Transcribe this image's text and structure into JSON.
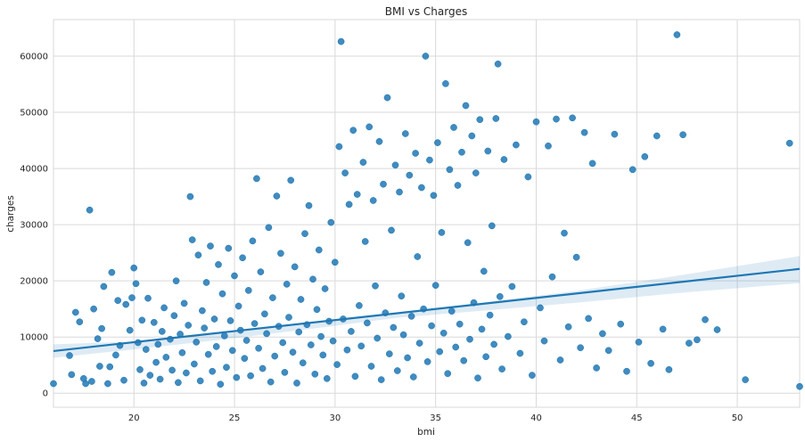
{
  "chart_data": {
    "type": "scatter",
    "title": "BMI vs Charges",
    "xlabel": "bmi",
    "ylabel": "charges",
    "xlim": [
      16,
      53.1
    ],
    "ylim": [
      -2500,
      66500
    ],
    "xticks": [
      20,
      25,
      30,
      35,
      40,
      45,
      50
    ],
    "xtick_labels": [
      "20",
      "25",
      "30",
      "35",
      "40",
      "45",
      "50"
    ],
    "yticks": [
      0,
      10000,
      20000,
      30000,
      40000,
      50000,
      60000
    ],
    "ytick_labels": [
      "0",
      "10000",
      "20000",
      "30000",
      "40000",
      "50000",
      "60000"
    ],
    "grid": true,
    "point_color": "#1f77b4",
    "line_color": "#1f77b4",
    "band_color": "#1f77b4",
    "regression": {
      "slope": 394,
      "intercept": 1200,
      "ci_band": [
        [
          16,
          6300,
          8700
        ],
        [
          20,
          7800,
          9200
        ],
        [
          25,
          9800,
          11100
        ],
        [
          30,
          12000,
          13000
        ],
        [
          33,
          13400,
          14300
        ],
        [
          37,
          14600,
          16000
        ],
        [
          42,
          16100,
          18200
        ],
        [
          47,
          17800,
          20900
        ],
        [
          53.1,
          19600,
          24400
        ]
      ]
    },
    "points": [
      [
        16.0,
        1700
      ],
      [
        16.8,
        6700
      ],
      [
        16.9,
        3300
      ],
      [
        17.1,
        14400
      ],
      [
        17.3,
        12700
      ],
      [
        17.5,
        2600
      ],
      [
        17.6,
        1700
      ],
      [
        17.8,
        32600
      ],
      [
        17.9,
        2100
      ],
      [
        18.0,
        15000
      ],
      [
        18.2,
        9700
      ],
      [
        18.3,
        4800
      ],
      [
        18.4,
        11500
      ],
      [
        18.5,
        19000
      ],
      [
        18.7,
        1700
      ],
      [
        18.8,
        4700
      ],
      [
        18.9,
        21500
      ],
      [
        19.1,
        6800
      ],
      [
        19.2,
        16500
      ],
      [
        19.3,
        8500
      ],
      [
        19.5,
        2300
      ],
      [
        19.6,
        15800
      ],
      [
        19.8,
        11200
      ],
      [
        19.9,
        17000
      ],
      [
        20.0,
        22300
      ],
      [
        20.1,
        19500
      ],
      [
        20.2,
        9000
      ],
      [
        20.3,
        4200
      ],
      [
        20.4,
        13000
      ],
      [
        20.5,
        1800
      ],
      [
        20.6,
        7800
      ],
      [
        20.7,
        16900
      ],
      [
        20.8,
        3200
      ],
      [
        21.0,
        12600
      ],
      [
        21.1,
        5500
      ],
      [
        21.2,
        8700
      ],
      [
        21.3,
        2500
      ],
      [
        21.4,
        11000
      ],
      [
        21.5,
        15200
      ],
      [
        21.6,
        6400
      ],
      [
        21.8,
        9600
      ],
      [
        21.9,
        4100
      ],
      [
        22.0,
        13800
      ],
      [
        22.1,
        20000
      ],
      [
        22.2,
        1900
      ],
      [
        22.3,
        10500
      ],
      [
        22.4,
        7200
      ],
      [
        22.5,
        16000
      ],
      [
        22.6,
        3600
      ],
      [
        22.7,
        12100
      ],
      [
        22.8,
        35000
      ],
      [
        22.9,
        27300
      ],
      [
        23.0,
        5200
      ],
      [
        23.1,
        9100
      ],
      [
        23.2,
        24600
      ],
      [
        23.3,
        2200
      ],
      [
        23.4,
        14700
      ],
      [
        23.5,
        11600
      ],
      [
        23.6,
        19700
      ],
      [
        23.7,
        6900
      ],
      [
        23.8,
        26200
      ],
      [
        23.9,
        3900
      ],
      [
        24.0,
        13200
      ],
      [
        24.1,
        8300
      ],
      [
        24.2,
        22900
      ],
      [
        24.3,
        1600
      ],
      [
        24.4,
        17700
      ],
      [
        24.5,
        10200
      ],
      [
        24.6,
        4600
      ],
      [
        24.7,
        25800
      ],
      [
        24.8,
        12900
      ],
      [
        24.9,
        7600
      ],
      [
        25.0,
        20900
      ],
      [
        25.1,
        2800
      ],
      [
        25.2,
        15500
      ],
      [
        25.3,
        11200
      ],
      [
        25.4,
        24100
      ],
      [
        25.5,
        6200
      ],
      [
        25.6,
        9400
      ],
      [
        25.7,
        18300
      ],
      [
        25.8,
        3100
      ],
      [
        25.9,
        27100
      ],
      [
        26.0,
        12400
      ],
      [
        26.1,
        38200
      ],
      [
        26.2,
        8000
      ],
      [
        26.3,
        21600
      ],
      [
        26.4,
        4400
      ],
      [
        26.5,
        14100
      ],
      [
        26.6,
        10600
      ],
      [
        26.7,
        29500
      ],
      [
        26.8,
        2000
      ],
      [
        26.9,
        17000
      ],
      [
        27.0,
        6600
      ],
      [
        27.1,
        35100
      ],
      [
        27.2,
        11900
      ],
      [
        27.3,
        24900
      ],
      [
        27.4,
        9000
      ],
      [
        27.5,
        3700
      ],
      [
        27.6,
        19400
      ],
      [
        27.7,
        13500
      ],
      [
        27.8,
        37900
      ],
      [
        27.9,
        7300
      ],
      [
        28.0,
        22500
      ],
      [
        28.1,
        1800
      ],
      [
        28.2,
        10900
      ],
      [
        28.3,
        16700
      ],
      [
        28.4,
        5400
      ],
      [
        28.5,
        28400
      ],
      [
        28.6,
        12200
      ],
      [
        28.7,
        33400
      ],
      [
        28.8,
        8600
      ],
      [
        28.9,
        20300
      ],
      [
        29.0,
        3400
      ],
      [
        29.1,
        14900
      ],
      [
        29.2,
        25500
      ],
      [
        29.3,
        10100
      ],
      [
        29.4,
        6800
      ],
      [
        29.5,
        18600
      ],
      [
        29.6,
        2600
      ],
      [
        29.7,
        12800
      ],
      [
        29.8,
        30400
      ],
      [
        29.9,
        9300
      ],
      [
        30.0,
        23300
      ],
      [
        30.1,
        5100
      ],
      [
        30.2,
        43900
      ],
      [
        30.3,
        62600
      ],
      [
        30.4,
        13200
      ],
      [
        30.5,
        39200
      ],
      [
        30.6,
        7700
      ],
      [
        30.7,
        33600
      ],
      [
        30.8,
        11000
      ],
      [
        30.9,
        46800
      ],
      [
        31.0,
        3000
      ],
      [
        31.1,
        35400
      ],
      [
        31.2,
        15600
      ],
      [
        31.3,
        8400
      ],
      [
        31.4,
        41100
      ],
      [
        31.5,
        27000
      ],
      [
        31.6,
        12500
      ],
      [
        31.7,
        47400
      ],
      [
        31.8,
        4800
      ],
      [
        31.9,
        34300
      ],
      [
        32.0,
        19100
      ],
      [
        32.1,
        9800
      ],
      [
        32.2,
        44800
      ],
      [
        32.3,
        2400
      ],
      [
        32.4,
        37200
      ],
      [
        32.5,
        14300
      ],
      [
        32.6,
        52600
      ],
      [
        32.7,
        7000
      ],
      [
        32.8,
        29000
      ],
      [
        32.9,
        11700
      ],
      [
        33.0,
        40600
      ],
      [
        33.1,
        4000
      ],
      [
        33.2,
        35800
      ],
      [
        33.3,
        17300
      ],
      [
        33.4,
        10400
      ],
      [
        33.5,
        46200
      ],
      [
        33.6,
        6300
      ],
      [
        33.7,
        38800
      ],
      [
        33.8,
        13700
      ],
      [
        33.9,
        2900
      ],
      [
        34.0,
        42700
      ],
      [
        34.1,
        24300
      ],
      [
        34.2,
        8900
      ],
      [
        34.3,
        36600
      ],
      [
        34.4,
        15000
      ],
      [
        34.5,
        60000
      ],
      [
        34.6,
        5600
      ],
      [
        34.7,
        41500
      ],
      [
        34.8,
        12000
      ],
      [
        34.9,
        35200
      ],
      [
        35.0,
        19200
      ],
      [
        35.1,
        44600
      ],
      [
        35.2,
        7400
      ],
      [
        35.3,
        28600
      ],
      [
        35.4,
        10700
      ],
      [
        35.5,
        55100
      ],
      [
        35.6,
        3500
      ],
      [
        35.7,
        39800
      ],
      [
        35.8,
        14600
      ],
      [
        35.9,
        47300
      ],
      [
        36.0,
        8200
      ],
      [
        36.1,
        37000
      ],
      [
        36.2,
        12300
      ],
      [
        36.3,
        42900
      ],
      [
        36.4,
        5800
      ],
      [
        36.5,
        51200
      ],
      [
        36.6,
        26800
      ],
      [
        36.7,
        9600
      ],
      [
        36.8,
        45800
      ],
      [
        36.9,
        16100
      ],
      [
        37.0,
        39200
      ],
      [
        37.1,
        2700
      ],
      [
        37.2,
        48700
      ],
      [
        37.3,
        11400
      ],
      [
        37.4,
        21700
      ],
      [
        37.5,
        6500
      ],
      [
        37.6,
        43100
      ],
      [
        37.7,
        13900
      ],
      [
        37.8,
        29800
      ],
      [
        37.9,
        8700
      ],
      [
        38.0,
        48900
      ],
      [
        38.1,
        58600
      ],
      [
        38.2,
        17200
      ],
      [
        38.3,
        4300
      ],
      [
        38.4,
        41600
      ],
      [
        38.6,
        10100
      ],
      [
        38.8,
        19000
      ],
      [
        39.0,
        44200
      ],
      [
        39.2,
        7100
      ],
      [
        39.4,
        12700
      ],
      [
        39.6,
        38500
      ],
      [
        39.8,
        3200
      ],
      [
        40.0,
        48300
      ],
      [
        40.2,
        15200
      ],
      [
        40.4,
        9300
      ],
      [
        40.6,
        44000
      ],
      [
        40.8,
        20700
      ],
      [
        41.0,
        48800
      ],
      [
        41.2,
        5900
      ],
      [
        41.4,
        28500
      ],
      [
        41.6,
        11800
      ],
      [
        41.8,
        49000
      ],
      [
        42.0,
        24200
      ],
      [
        42.2,
        8100
      ],
      [
        42.4,
        46400
      ],
      [
        42.6,
        13300
      ],
      [
        42.8,
        40900
      ],
      [
        43.0,
        4500
      ],
      [
        43.3,
        10600
      ],
      [
        43.6,
        7600
      ],
      [
        43.9,
        46100
      ],
      [
        44.2,
        12300
      ],
      [
        44.5,
        3900
      ],
      [
        44.8,
        39800
      ],
      [
        45.1,
        9100
      ],
      [
        45.4,
        42100
      ],
      [
        45.7,
        5300
      ],
      [
        46.0,
        45800
      ],
      [
        46.3,
        11400
      ],
      [
        46.6,
        4200
      ],
      [
        47.0,
        63800
      ],
      [
        47.3,
        46000
      ],
      [
        47.6,
        8900
      ],
      [
        48.0,
        9500
      ],
      [
        48.4,
        13100
      ],
      [
        49.0,
        11300
      ],
      [
        50.4,
        2400
      ],
      [
        52.6,
        44500
      ],
      [
        53.1,
        1200
      ]
    ]
  }
}
